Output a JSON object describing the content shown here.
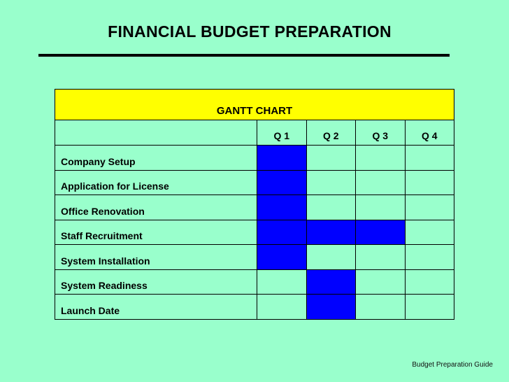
{
  "slide": {
    "title": "FINANCIAL BUDGET PREPARATION",
    "footer": "Budget Preparation Guide"
  },
  "colors": {
    "background": "#99ffcc",
    "header_band": "#ffff00",
    "bar": "#0000ff"
  },
  "gantt": {
    "title": "GANTT CHART",
    "quarters": [
      "Q 1",
      "Q 2",
      "Q 3",
      "Q 4"
    ],
    "tasks": [
      {
        "label": "Company Setup",
        "active": [
          "Q 1"
        ]
      },
      {
        "label": "Application for License",
        "active": [
          "Q 1"
        ]
      },
      {
        "label": "Office Renovation",
        "active": [
          "Q 1"
        ]
      },
      {
        "label": "Staff Recruitment",
        "active": [
          "Q 1",
          "Q 2",
          "Q 3"
        ]
      },
      {
        "label": "System Installation",
        "active": [
          "Q 1"
        ]
      },
      {
        "label": "System Readiness",
        "active": [
          "Q 2"
        ]
      },
      {
        "label": "Launch Date",
        "active": [
          "Q 2"
        ]
      }
    ]
  }
}
